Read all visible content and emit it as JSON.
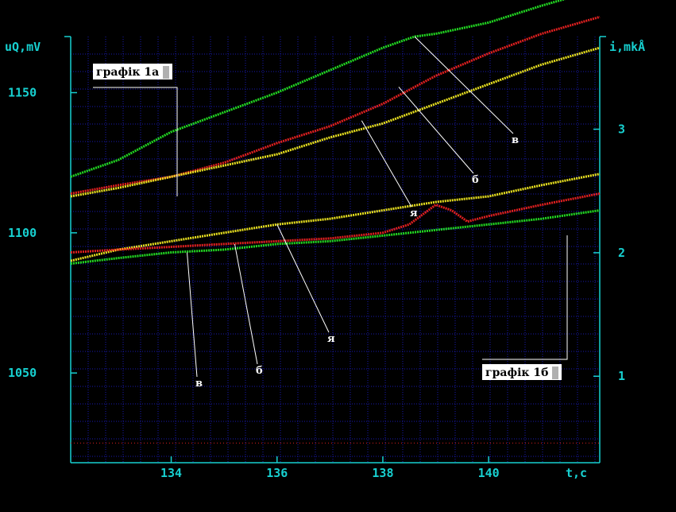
{
  "chart_data": {
    "type": "line",
    "xlabel": "t,c",
    "ylabel_left": "uQ,mV",
    "ylabel_right": "i,mkÅ",
    "xlim": [
      132.1,
      142.1
    ],
    "ylim_left": [
      1018,
      1170
    ],
    "ylim_right": [
      0.3,
      3.75
    ],
    "x_ticks": [
      134,
      136,
      138,
      140
    ],
    "y_ticks_left": [
      1050,
      1100,
      1150
    ],
    "y_ticks_right": [
      1,
      2,
      3
    ],
    "grid": true,
    "colors": {
      "background": "#000000",
      "axis": "#17d0d0",
      "grid": "#1a1ab0",
      "green": "#22d822",
      "red": "#e02020",
      "yellow": "#e8e020",
      "label": "#ffffff"
    },
    "legend_boxes": [
      {
        "text": "графік 1а"
      },
      {
        "text": "графік 1б"
      }
    ],
    "series": [
      {
        "group": "1a",
        "color": "green",
        "x": [
          132.1,
          133,
          134,
          135,
          136,
          137,
          138,
          138.6,
          139,
          140,
          141,
          142.1
        ],
        "y": [
          1120,
          1126,
          1136,
          1143,
          1150,
          1158,
          1166,
          1170,
          1171,
          1175,
          1181,
          1187
        ]
      },
      {
        "group": "1a",
        "color": "red",
        "x": [
          132.1,
          133,
          134,
          135,
          136,
          137,
          138,
          139,
          140,
          141,
          142.1
        ],
        "y": [
          1114,
          1117,
          1120,
          1125,
          1132,
          1138,
          1146,
          1156,
          1164,
          1171,
          1177
        ]
      },
      {
        "group": "1a",
        "color": "yellow",
        "x": [
          132.1,
          133,
          134,
          135,
          136,
          137,
          138,
          139,
          140,
          141,
          142.1
        ],
        "y": [
          1113,
          1116,
          1120,
          1124,
          1128,
          1134,
          1139,
          1146,
          1153,
          1160,
          1166
        ]
      },
      {
        "group": "1b",
        "color": "yellow",
        "x": [
          132.1,
          133,
          134,
          135,
          136,
          137,
          138,
          139,
          140,
          141,
          142.1
        ],
        "y": [
          1090,
          1094,
          1097,
          1100,
          1103,
          1105,
          1108,
          1111,
          1113,
          1117,
          1121
        ]
      },
      {
        "group": "1b",
        "color": "red",
        "x": [
          132.1,
          133,
          134,
          135,
          136,
          137,
          138,
          138.5,
          139,
          139.3,
          139.6,
          140,
          141,
          142.1
        ],
        "y": [
          1093,
          1094,
          1095,
          1096,
          1097,
          1098,
          1100,
          1103,
          1110,
          1108,
          1104,
          1106,
          1110,
          1114
        ]
      },
      {
        "group": "1b",
        "color": "green",
        "x": [
          132.1,
          133,
          134,
          135,
          136,
          137,
          138,
          139,
          140,
          141,
          142.1
        ],
        "y": [
          1089,
          1091,
          1093,
          1094,
          1096,
          1097,
          1099,
          1101,
          1103,
          1105,
          1108
        ]
      },
      {
        "group": "baseline",
        "color": "red",
        "x": [
          132.1,
          142.1
        ],
        "y": [
          1025,
          1025
        ]
      }
    ],
    "annotations": [
      {
        "text": "в",
        "target": {
          "x": 138.6,
          "y": 1170
        }
      },
      {
        "text": "б",
        "target": {
          "x": 138.3,
          "y": 1152
        }
      },
      {
        "text": "я",
        "target": {
          "x": 137.6,
          "y": 1140
        }
      },
      {
        "text": "в",
        "target": {
          "x": 134.3,
          "y": 1093
        }
      },
      {
        "text": "б",
        "target": {
          "x": 135.2,
          "y": 1096
        }
      },
      {
        "text": "я",
        "target": {
          "x": 136.0,
          "y": 1103
        }
      }
    ]
  }
}
